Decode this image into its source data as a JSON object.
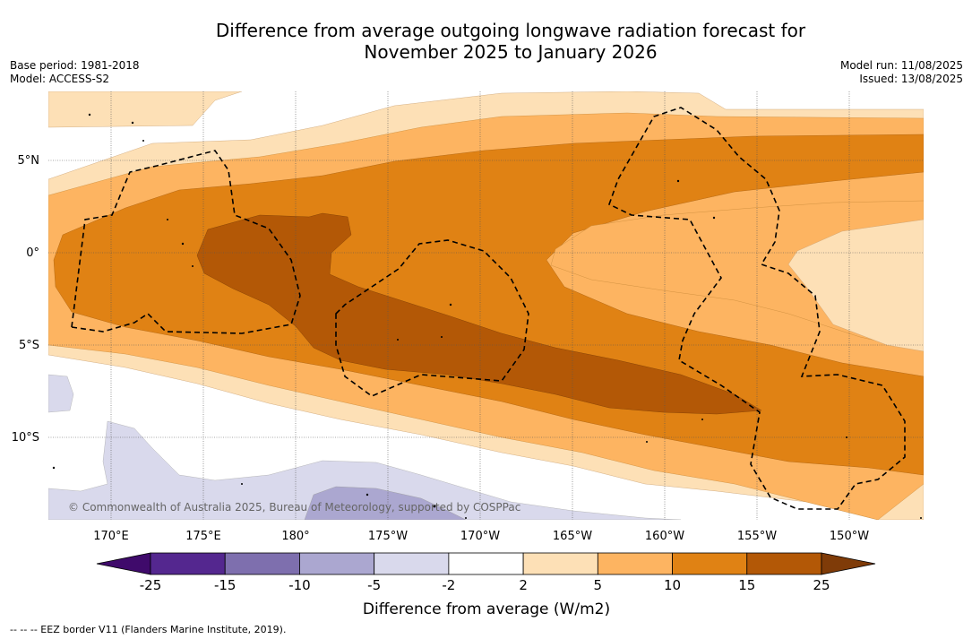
{
  "title_line1": "Difference from average outgoing longwave radiation forecast for",
  "title_line2": "November 2025 to January 2026",
  "base_period": "Base period: 1981-2018",
  "model": "Model: ACCESS-S2",
  "model_run": "Model run: 11/08/2025",
  "issued": "Issued: 13/08/2025",
  "lat_labels": [
    "5°N",
    "0°",
    "5°S",
    "10°S"
  ],
  "lon_labels": [
    "170°E",
    "175°E",
    "180°",
    "175°W",
    "170°W",
    "165°W",
    "160°W",
    "155°W",
    "150°W"
  ],
  "watermark": "© Commonwealth of Australia 2025, Bureau of Meteorology, supported by COSPPac",
  "colorbar": {
    "ticks": [
      "-25",
      "-15",
      "-10",
      "-5",
      "-2",
      "2",
      "5",
      "10",
      "15",
      "25"
    ],
    "colors": [
      "#3f0a6b",
      "#54278f",
      "#7e6fae",
      "#aba7d0",
      "#d9d9ec",
      "#ffffff",
      "#fde0b6",
      "#fdb461",
      "#e08214",
      "#b35806",
      "#7f3b08"
    ],
    "title": "Difference from average (W/m2)"
  },
  "footer": "--  --  -- EEZ border V11 (Flanders Marine Institute, 2019)."
}
